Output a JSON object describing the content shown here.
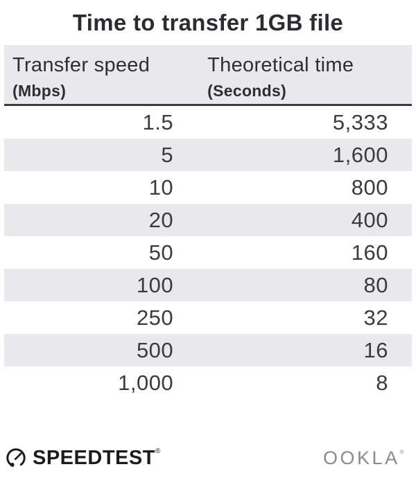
{
  "title": "Time to transfer 1GB file",
  "table": {
    "columns": [
      {
        "label": "Transfer speed",
        "sublabel": "(Mbps)"
      },
      {
        "label": "Theoretical time",
        "sublabel": "(Seconds)"
      }
    ],
    "rows": [
      [
        "1.5",
        "5,333"
      ],
      [
        "5",
        "1,600"
      ],
      [
        "10",
        "800"
      ],
      [
        "20",
        "400"
      ],
      [
        "50",
        "160"
      ],
      [
        "100",
        "80"
      ],
      [
        "250",
        "32"
      ],
      [
        "500",
        "16"
      ],
      [
        "1,000",
        "8"
      ]
    ]
  },
  "footer": {
    "speedtest_label": "SPEEDTEST",
    "speedtest_trademark": "®",
    "ookla_label": "OOKLA",
    "ookla_trademark": "®"
  },
  "colors": {
    "alt_row_bg": "#e9e8ec",
    "header_bg": "#e9e8ec",
    "header_border": "#3b3b3b",
    "title_text": "#2b2b33",
    "number_text": "#3a3a3f",
    "speedtest_dark": "#1b1b22",
    "ookla_gray": "#8b8b8b"
  },
  "chart_data": {
    "type": "table",
    "title": "Time to transfer 1GB file",
    "columns": [
      "Transfer speed (Mbps)",
      "Theoretical time (Seconds)"
    ],
    "transfer_speed_mbps": [
      1.5,
      5,
      10,
      20,
      50,
      100,
      250,
      500,
      1000
    ],
    "theoretical_time_seconds": [
      5333,
      1600,
      800,
      400,
      160,
      80,
      32,
      16,
      8
    ],
    "layout": "two-column table, alternating light-gray row stripes, values right-aligned"
  }
}
